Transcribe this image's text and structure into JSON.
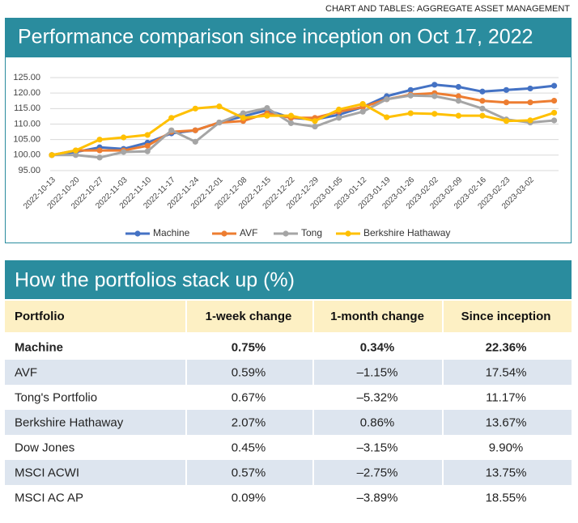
{
  "header": {
    "kicker": "CHART AND TABLES: AGGREGATE ASSET MANAGEMENT",
    "title": "Performance comparison since inception on Oct 17, 2022"
  },
  "chart_data": {
    "type": "line",
    "categories": [
      "2022-10-13",
      "2022-10-20",
      "2022-10-27",
      "2022-11-03",
      "2022-11-10",
      "2022-11-17",
      "2022-11-24",
      "2022-12-01",
      "2022-12-08",
      "2022-12-15",
      "2022-12-22",
      "2022-12-29",
      "2023-01-05",
      "2023-01-12",
      "2023-01-19",
      "2023-01-26",
      "2023-02-02",
      "2023-02-09",
      "2023-02-16",
      "2023-02-23",
      "2023-03-02",
      null
    ],
    "series": [
      {
        "name": "Machine",
        "color": "#4472c4",
        "values": [
          100,
          101,
          102.5,
          102,
          104,
          107,
          108,
          110.5,
          112.5,
          114.5,
          112,
          111.5,
          113,
          115.5,
          119,
          121,
          122.7,
          122,
          120.5,
          121,
          121.5,
          122.36
        ]
      },
      {
        "name": "AVF",
        "color": "#ed7d31",
        "values": [
          100,
          101.5,
          101.5,
          101.5,
          103,
          107.5,
          108,
          110.5,
          111,
          113.5,
          112,
          112,
          114,
          115.5,
          118,
          119.5,
          120,
          119,
          117.5,
          117,
          117,
          117.54
        ]
      },
      {
        "name": "Tong",
        "color": "#a5a5a5",
        "values": [
          100,
          100,
          99.2,
          101,
          101.2,
          108,
          104.3,
          110.5,
          113.5,
          115.2,
          110.3,
          109.2,
          112,
          114,
          118,
          119.2,
          119,
          117.5,
          115,
          111.5,
          110.5,
          111.17
        ]
      },
      {
        "name": "Berkshire Hathaway",
        "color": "#ffc000",
        "values": [
          100,
          101.5,
          105,
          105.7,
          106.5,
          112,
          115,
          115.7,
          112,
          112.7,
          112.7,
          111,
          114.7,
          116.5,
          112.2,
          113.5,
          113.3,
          112.7,
          112.7,
          111,
          111.2,
          113.67
        ]
      }
    ],
    "ylim": [
      95,
      125
    ],
    "yticks": [
      {
        "value": 95,
        "label": "95.00"
      },
      {
        "value": 100,
        "label": "100.00"
      },
      {
        "value": 105,
        "label": "105.00"
      },
      {
        "value": 110,
        "label": "110.00"
      },
      {
        "value": 115,
        "label": "115.00"
      },
      {
        "value": 120,
        "label": "120.00"
      },
      {
        "value": 125,
        "label": "125.00"
      }
    ],
    "grid": true,
    "legend": "bottom"
  },
  "table": {
    "title": "How the portfolios stack up (%)",
    "columns": [
      "Portfolio",
      "1-week change",
      "1-month change",
      "Since inception"
    ],
    "rows": [
      [
        "Machine",
        "0.75%",
        "0.34%",
        "22.36%"
      ],
      [
        "AVF",
        "0.59%",
        "–1.15%",
        "17.54%"
      ],
      [
        "Tong's Portfolio",
        "0.67%",
        "–5.32%",
        "11.17%"
      ],
      [
        "Berkshire Hathaway",
        "2.07%",
        "0.86%",
        "13.67%"
      ],
      [
        "Dow Jones",
        "0.45%",
        "–3.15%",
        "9.90%"
      ],
      [
        "MSCI ACWI",
        "0.57%",
        "–2.75%",
        "13.75%"
      ],
      [
        "MSCI AC AP",
        "0.09%",
        "–3.89%",
        "18.55%"
      ]
    ]
  }
}
